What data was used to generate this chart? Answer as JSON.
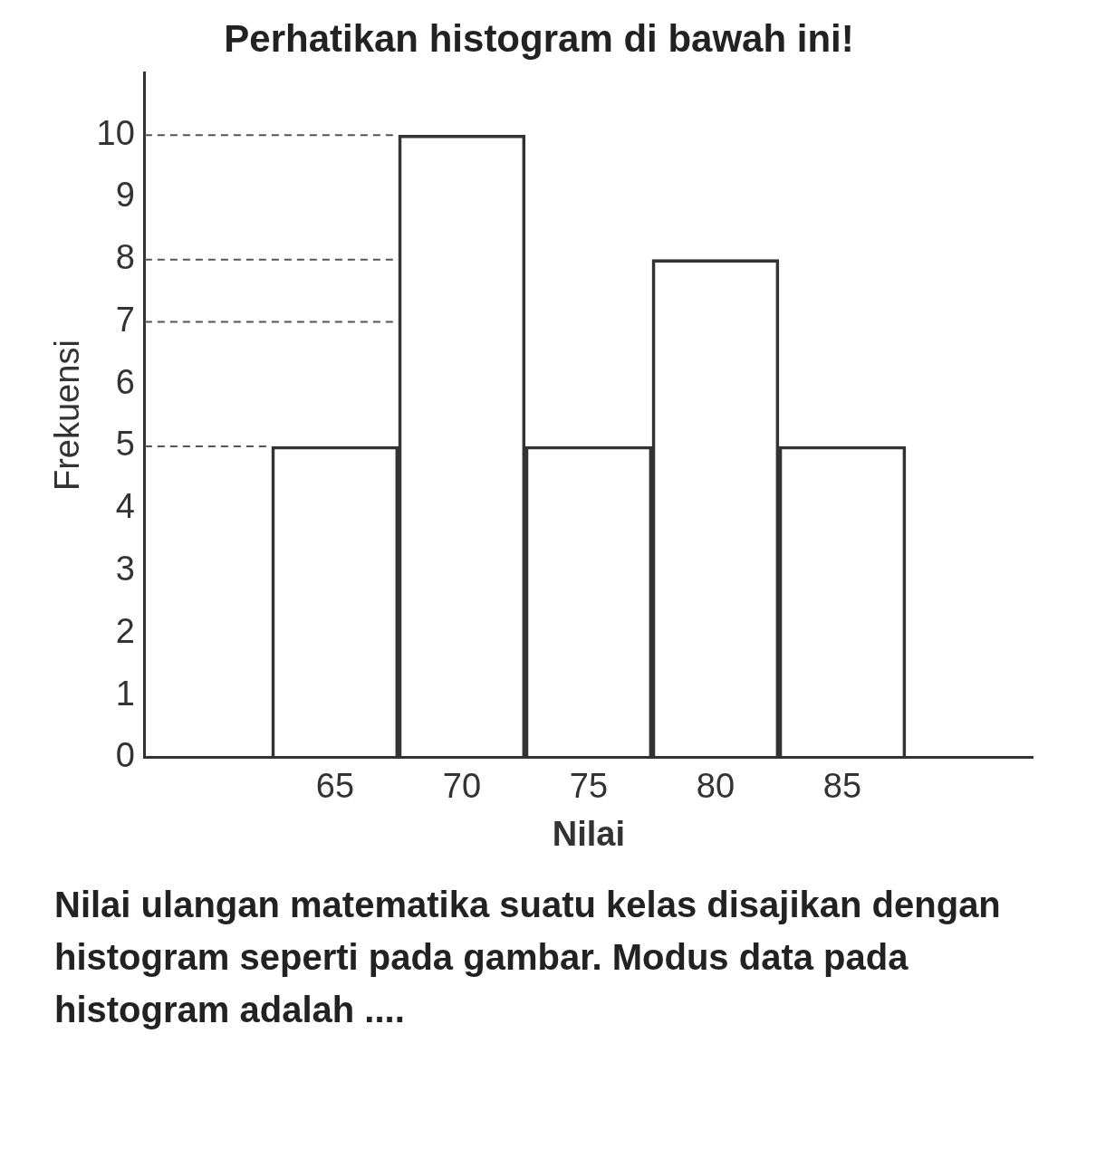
{
  "chart_data": {
    "type": "histogram",
    "title": "Perhatikan histogram di bawah ini!",
    "xlabel": "Nilai",
    "ylabel": "Frekuensi",
    "bins": [
      62.5,
      67.5,
      72.5,
      77.5,
      82.5,
      87.5
    ],
    "values": [
      5,
      10,
      5,
      8,
      5
    ],
    "color": "#333333",
    "xlim": [
      57.5,
      92.5
    ],
    "xticks": [
      65,
      70,
      75,
      80,
      85
    ],
    "ylim": [
      0,
      11
    ],
    "yticks": [
      0,
      1,
      2,
      3,
      4,
      5,
      6,
      7,
      8,
      9,
      10
    ],
    "grid": false,
    "ref_lines": [
      {
        "axis": "y",
        "value": 10,
        "line_style": "dashed"
      },
      {
        "axis": "y",
        "value": 8,
        "line_style": "dashed"
      },
      {
        "axis": "y",
        "value": 7,
        "line_style": "dashed"
      },
      {
        "axis": "y",
        "value": 5,
        "line_style": "dashed"
      }
    ],
    "annotations": [
      "Nilai ulangan matematika suatu kelas disajikan dengan histogram seperti pada gambar. Modus data pada histogram adalah ...."
    ]
  }
}
